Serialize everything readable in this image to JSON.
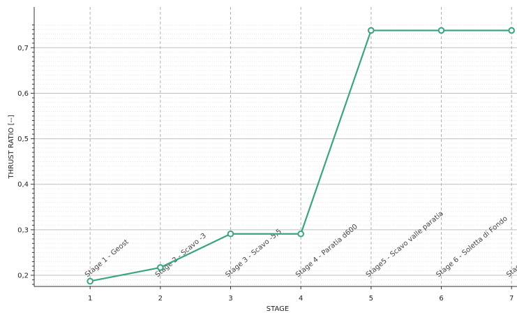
{
  "chart_data": {
    "type": "line",
    "title": "",
    "xlabel": "STAGE",
    "ylabel": "THRUST RATIO [--]",
    "xlim": [
      0,
      7
    ],
    "ylim": [
      0.175,
      0.755
    ],
    "x_ticks": [
      {
        "value": 1,
        "label": "1"
      },
      {
        "value": 2,
        "label": "2"
      },
      {
        "value": 3,
        "label": "3"
      },
      {
        "value": 4,
        "label": "4"
      },
      {
        "value": 5,
        "label": "5"
      },
      {
        "value": 6,
        "label": "6"
      },
      {
        "value": 7,
        "label": "7"
      }
    ],
    "y_ticks": [
      {
        "value": 0.2,
        "label": "0,2"
      },
      {
        "value": 0.3,
        "label": "0,3"
      },
      {
        "value": 0.4,
        "label": "0,4"
      },
      {
        "value": 0.5,
        "label": "0,5"
      },
      {
        "value": 0.6,
        "label": "0,6"
      },
      {
        "value": 0.7,
        "label": "0,7"
      }
    ],
    "grid": true,
    "series": [
      {
        "x": [
          1,
          2,
          3,
          4,
          5,
          6,
          7
        ],
        "y": [
          0.187,
          0.217,
          0.291,
          0.291,
          0.738,
          0.738,
          0.738
        ],
        "color": "#3aa383"
      }
    ],
    "stage_labels": [
      {
        "x": 1,
        "text": "Stage 1 - Geost"
      },
      {
        "x": 2,
        "text": "Stage 2 - Scavo -3"
      },
      {
        "x": 3,
        "text": "Stage 3 - Scavo -5,5"
      },
      {
        "x": 4,
        "text": "Stage 4 - Paratia d600"
      },
      {
        "x": 5,
        "text": "Stage5 - Scavo valle paratia"
      },
      {
        "x": 6,
        "text": "Stage 6 - Soletta di Fondo"
      },
      {
        "x": 7,
        "text": "Stag"
      }
    ]
  }
}
